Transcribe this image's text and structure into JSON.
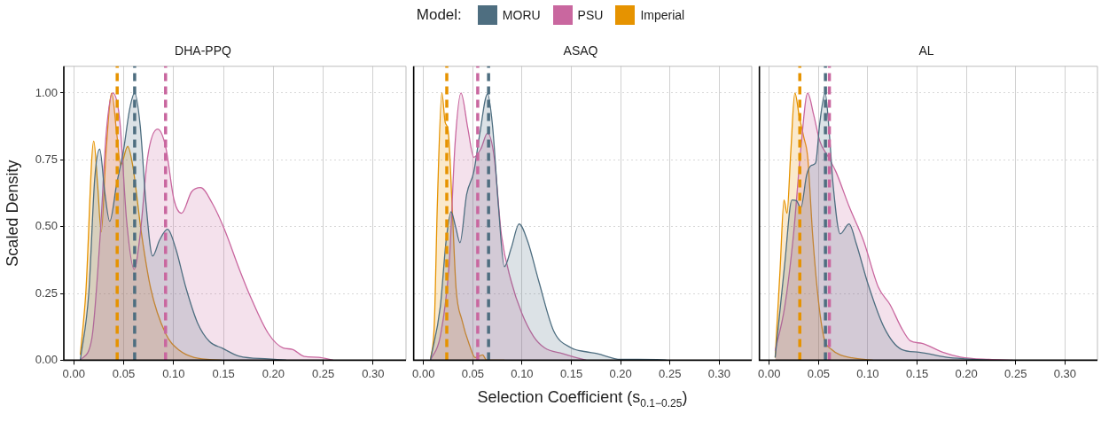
{
  "chart_data": [
    {
      "type": "area",
      "title": "DHA-PPQ",
      "ylabel": "Scaled Density",
      "legend_title": "Model:",
      "legend": "top",
      "grid": true,
      "tick_labels": "xy",
      "xlim": [
        -0.01,
        0.333
      ],
      "ylim": [
        0,
        1.1
      ],
      "xticks": [
        {
          "value": 0,
          "label": "0.00"
        },
        {
          "value": 0.05,
          "label": "0.05"
        },
        {
          "value": 0.1,
          "label": "0.10"
        },
        {
          "value": 0.15,
          "label": "0.15"
        },
        {
          "value": 0.2,
          "label": "0.20"
        },
        {
          "value": 0.25,
          "label": "0.25"
        },
        {
          "value": 0.3,
          "label": "0.30"
        }
      ],
      "yticks": [
        {
          "value": 0,
          "label": "0.00"
        },
        {
          "value": 0.25,
          "label": "0.25"
        },
        {
          "value": 0.5,
          "label": "0.50"
        },
        {
          "value": 0.75,
          "label": "0.75"
        },
        {
          "value": 1,
          "label": "1.00"
        }
      ],
      "series": [
        {
          "name": "MORU",
          "color": "#4e6e80",
          "x": [
            0.0065,
            0.015,
            0.021,
            0.026,
            0.031,
            0.036,
            0.043,
            0.05,
            0.056,
            0.061,
            0.0665,
            0.0725,
            0.079,
            0.086,
            0.094,
            0.102,
            0.1125,
            0.124,
            0.136,
            0.149,
            0.166,
            0.195,
            0.213
          ],
          "values": [
            0,
            0.25,
            0.68,
            0.79,
            0.63,
            0.52,
            0.66,
            0.79,
            0.94,
            1.0,
            0.88,
            0.58,
            0.39,
            0.45,
            0.49,
            0.42,
            0.27,
            0.14,
            0.07,
            0.045,
            0.015,
            0.005,
            0
          ]
        },
        {
          "name": "PSU",
          "color": "#c9679f",
          "x": [
            0.0065,
            0.018,
            0.0265,
            0.0325,
            0.039,
            0.046,
            0.053,
            0.0605,
            0.0665,
            0.074,
            0.084,
            0.092,
            0.1005,
            0.108,
            0.118,
            0.127,
            0.139,
            0.151,
            0.166,
            0.178,
            0.195,
            0.21,
            0.219,
            0.231,
            0.2455,
            0.26
          ],
          "values": [
            0,
            0.08,
            0.47,
            0.85,
            1.0,
            0.9,
            0.52,
            0.34,
            0.47,
            0.76,
            0.865,
            0.8,
            0.6,
            0.55,
            0.63,
            0.646,
            0.586,
            0.49,
            0.34,
            0.23,
            0.1,
            0.046,
            0.041,
            0.014,
            0.011,
            0
          ]
        },
        {
          "name": "Imperial",
          "color": "#e69300",
          "x": [
            0.0065,
            0.012,
            0.02,
            0.024,
            0.0275,
            0.0325,
            0.038,
            0.043,
            0.047,
            0.054,
            0.059,
            0.068,
            0.077,
            0.092,
            0.1065,
            0.121,
            0.148
          ],
          "values": [
            0.02,
            0.25,
            0.82,
            0.65,
            0.48,
            0.79,
            1.0,
            0.85,
            0.73,
            0.8,
            0.73,
            0.47,
            0.27,
            0.1,
            0.035,
            0.01,
            0
          ]
        }
      ],
      "ref_lines": [
        {
          "axis": "x",
          "value": 0.0435,
          "color": "#e69300",
          "line_style": "dashed"
        },
        {
          "axis": "x",
          "value": 0.061,
          "color": "#4e6e80",
          "line_style": "dashed"
        },
        {
          "axis": "x",
          "value": 0.092,
          "color": "#c9679f",
          "line_style": "dashed"
        }
      ]
    },
    {
      "type": "area",
      "title": "ASAQ",
      "xlabel": "Selection Coefficient (s$_{0.1−0.25}$)",
      "grid": true,
      "tick_labels": "x",
      "xlim": [
        -0.01,
        0.333
      ],
      "ylim": [
        0,
        1.1
      ],
      "xticks": [
        {
          "value": 0,
          "label": "0.00"
        },
        {
          "value": 0.05,
          "label": "0.05"
        },
        {
          "value": 0.1,
          "label": "0.10"
        },
        {
          "value": 0.15,
          "label": "0.15"
        },
        {
          "value": 0.2,
          "label": "0.20"
        },
        {
          "value": 0.25,
          "label": "0.25"
        },
        {
          "value": 0.3,
          "label": "0.30"
        }
      ],
      "yticks": [
        {
          "value": 0,
          "label": null
        },
        {
          "value": 0.25,
          "label": null
        },
        {
          "value": 0.5,
          "label": null
        },
        {
          "value": 0.75,
          "label": null
        },
        {
          "value": 1,
          "label": null
        }
      ],
      "series": [
        {
          "color": "#4e6e80",
          "x": [
            0.007,
            0.017,
            0.023,
            0.028,
            0.0325,
            0.037,
            0.0437,
            0.051,
            0.057,
            0.065,
            0.07,
            0.076,
            0.082,
            0.089,
            0.097,
            0.1056,
            0.117,
            0.132,
            0.15,
            0.1646,
            0.176,
            0.2,
            0.218,
            0.241,
            0.247
          ],
          "values": [
            0,
            0.2,
            0.45,
            0.556,
            0.5,
            0.44,
            0.62,
            0.705,
            0.846,
            0.997,
            0.878,
            0.576,
            0.35,
            0.42,
            0.51,
            0.446,
            0.295,
            0.11,
            0.046,
            0.032,
            0.025,
            0.003,
            0.003,
            0.002,
            0
          ]
        },
        {
          "color": "#c9679f",
          "x": [
            0.007,
            0.017,
            0.026,
            0.032,
            0.038,
            0.045,
            0.051,
            0.058,
            0.065,
            0.0717,
            0.079,
            0.089,
            0.0997,
            0.1115,
            0.123,
            0.141,
            0.153,
            0.165
          ],
          "values": [
            0,
            0.09,
            0.36,
            0.81,
            1.0,
            0.867,
            0.76,
            0.79,
            0.85,
            0.76,
            0.47,
            0.295,
            0.176,
            0.09,
            0.046,
            0.025,
            0.012,
            0
          ]
        },
        {
          "color": "#e69300",
          "x": [
            0.007,
            0.011,
            0.014,
            0.0186,
            0.022,
            0.025,
            0.029,
            0.033,
            0.039,
            0.0466,
            0.0525,
            0.06,
            0.064,
            0.082
          ],
          "values": [
            0,
            0.14,
            0.58,
            1.0,
            0.89,
            0.86,
            0.58,
            0.27,
            0.15,
            0.057,
            0.01,
            0.02,
            0,
            0
          ]
        }
      ],
      "ref_lines": [
        {
          "axis": "x",
          "value": 0.0236,
          "color": "#e69300",
          "line_style": "dashed"
        },
        {
          "axis": "x",
          "value": 0.055,
          "color": "#c9679f",
          "line_style": "dashed"
        },
        {
          "axis": "x",
          "value": 0.066,
          "color": "#4e6e80",
          "line_style": "dashed"
        }
      ]
    },
    {
      "type": "area",
      "title": "AL",
      "grid": true,
      "tick_labels": "x",
      "xlim": [
        -0.01,
        0.333
      ],
      "ylim": [
        0,
        1.1
      ],
      "xticks": [
        {
          "value": 0,
          "label": "0.00"
        },
        {
          "value": 0.05,
          "label": "0.05"
        },
        {
          "value": 0.1,
          "label": "0.10"
        },
        {
          "value": 0.15,
          "label": "0.15"
        },
        {
          "value": 0.2,
          "label": "0.20"
        },
        {
          "value": 0.25,
          "label": "0.25"
        },
        {
          "value": 0.3,
          "label": "0.30"
        }
      ],
      "yticks": [
        {
          "value": 0,
          "label": null
        },
        {
          "value": 0.25,
          "label": null
        },
        {
          "value": 0.5,
          "label": null
        },
        {
          "value": 0.75,
          "label": null
        },
        {
          "value": 1,
          "label": null
        }
      ],
      "series": [
        {
          "color": "#4e6e80",
          "x": [
            0.006,
            0.0157,
            0.023,
            0.0276,
            0.032,
            0.038,
            0.043,
            0.047,
            0.0513,
            0.0567,
            0.061,
            0.0647,
            0.072,
            0.081,
            0.0884,
            0.1003,
            0.1166,
            0.134,
            0.152,
            0.179,
            0.2,
            0.223
          ],
          "values": [
            0.01,
            0.36,
            0.6,
            0.597,
            0.57,
            0.694,
            0.73,
            0.738,
            0.889,
            1.0,
            0.846,
            0.66,
            0.473,
            0.51,
            0.435,
            0.284,
            0.122,
            0.041,
            0.03,
            0.012,
            0.005,
            0
          ]
        },
        {
          "color": "#c9679f",
          "x": [
            0.006,
            0.0157,
            0.0246,
            0.032,
            0.039,
            0.045,
            0.0513,
            0.06,
            0.0677,
            0.081,
            0.0958,
            0.1107,
            0.1226,
            0.134,
            0.143,
            0.155,
            0.176,
            0.194,
            0.223,
            0.247
          ],
          "values": [
            0.036,
            0.2,
            0.47,
            0.79,
            1.0,
            0.92,
            0.82,
            0.76,
            0.705,
            0.576,
            0.446,
            0.273,
            0.208,
            0.122,
            0.073,
            0.063,
            0.03,
            0.012,
            0.003,
            0
          ]
        },
        {
          "color": "#e69300",
          "x": [
            0.006,
            0.011,
            0.015,
            0.018,
            0.0217,
            0.026,
            0.0306,
            0.035,
            0.039,
            0.044,
            0.05,
            0.0558,
            0.063,
            0.072,
            0.084,
            0.105
          ],
          "values": [
            0.01,
            0.34,
            0.6,
            0.55,
            0.77,
            1.0,
            0.91,
            0.835,
            0.76,
            0.47,
            0.22,
            0.08,
            0.041,
            0.02,
            0.009,
            0
          ]
        }
      ],
      "ref_lines": [
        {
          "axis": "x",
          "value": 0.031,
          "color": "#e69300",
          "line_style": "dashed"
        },
        {
          "axis": "x",
          "value": 0.057,
          "color": "#4e6e80",
          "line_style": "dashed"
        },
        {
          "axis": "x",
          "value": 0.061,
          "color": "#c9679f",
          "line_style": "dashed"
        }
      ]
    }
  ]
}
